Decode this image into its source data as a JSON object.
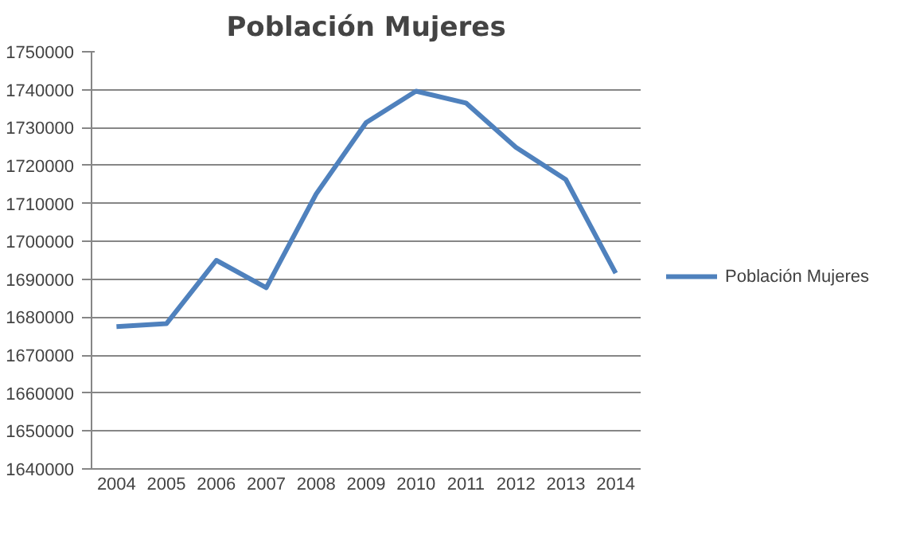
{
  "chart_data": {
    "type": "line",
    "title": "Población Mujeres",
    "categories": [
      "2004",
      "2005",
      "2006",
      "2007",
      "2008",
      "2009",
      "2010",
      "2011",
      "2012",
      "2013",
      "2014"
    ],
    "series": [
      {
        "name": "Población Mujeres",
        "color": "#4f81bd",
        "values": [
          1677500,
          1678300,
          1695000,
          1687800,
          1712500,
          1731300,
          1739600,
          1736500,
          1724800,
          1716300,
          1691600
        ]
      }
    ],
    "ylim": [
      1640000,
      1750000
    ],
    "yticks": [
      1640000,
      1650000,
      1660000,
      1670000,
      1680000,
      1690000,
      1700000,
      1710000,
      1720000,
      1730000,
      1740000,
      1750000
    ],
    "grid": "y",
    "legend": "right",
    "marker": "none",
    "line_style": "solid"
  }
}
